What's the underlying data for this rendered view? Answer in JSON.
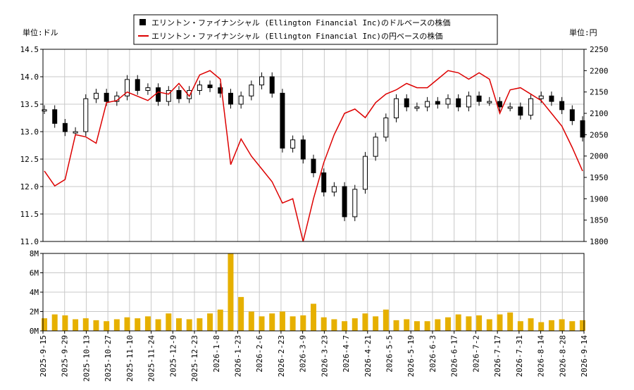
{
  "chart_data": {
    "type": "line",
    "legend_position": "top-center",
    "legend": [
      {
        "name": "エリントン・ファイナンシャル (Ellington Financial Inc)のドルベースの株価",
        "color": "#000000",
        "marker": "box"
      },
      {
        "name": "エリントン・ファイナンシャル (Ellington Financial Inc)の円ベースの株価",
        "color": "#dd0000",
        "marker": "line"
      }
    ],
    "y_left_unit": "単位:ドル",
    "y_right_unit": "単位:円",
    "y_left_range": [
      11.0,
      14.5
    ],
    "y_left_ticks": [
      "11.0",
      "11.5",
      "12.0",
      "12.5",
      "13.0",
      "13.5",
      "14.0",
      "14.5"
    ],
    "y_right_range": [
      1800,
      2250
    ],
    "y_right_ticks": [
      "1800",
      "1850",
      "1900",
      "1950",
      "2000",
      "2050",
      "2100",
      "2150",
      "2200",
      "2250"
    ],
    "volume_range": [
      0,
      8000000
    ],
    "volume_ticks": [
      "0M",
      "2M",
      "4M",
      "6M",
      "8M"
    ],
    "grid": true,
    "x_ticks": [
      "2025-9-15",
      "2025-9-29",
      "2025-10-13",
      "2025-10-27",
      "2025-11-10",
      "2025-11-24",
      "2025-12-9",
      "2025-12-23",
      "2026-1-8",
      "2026-1-23",
      "2026-2-6",
      "2026-2-23",
      "2026-3-9",
      "2026-3-23",
      "2026-4-7",
      "2026-4-21",
      "2026-5-5",
      "2026-5-19",
      "2026-6-3",
      "2026-6-17",
      "2026-7-2",
      "2026-7-17",
      "2026-7-31",
      "2026-8-14",
      "2026-8-28",
      "2026-9-14"
    ],
    "series": [
      {
        "name": "エリントン・ファイナンシャル (Ellington Financial Inc)のドルベースの株価",
        "values": [
          13.4,
          13.15,
          13.0,
          13.0,
          13.6,
          13.7,
          13.55,
          13.65,
          13.95,
          13.75,
          13.8,
          13.55,
          13.75,
          13.6,
          13.75,
          13.85,
          13.8,
          13.7,
          13.5,
          13.65,
          13.85,
          14.0,
          13.7,
          12.7,
          12.85,
          12.5,
          12.25,
          11.9,
          12.0,
          11.45,
          11.95,
          12.55,
          12.9,
          13.25,
          13.6,
          13.45,
          13.45,
          13.55,
          13.5,
          13.6,
          13.45,
          13.65,
          13.55,
          13.55,
          13.45,
          13.45,
          13.3,
          13.6,
          13.65,
          13.55,
          13.4,
          13.2,
          12.9
        ]
      },
      {
        "name": "エリントン・ファイナンシャル (Ellington Financial Inc)の円ベースの株価",
        "values": [
          1965,
          1930,
          1945,
          2050,
          2045,
          2030,
          2125,
          2130,
          2150,
          2140,
          2130,
          2150,
          2145,
          2170,
          2140,
          2190,
          2200,
          2180,
          1980,
          2040,
          2000,
          1970,
          1940,
          1890,
          1900,
          1800,
          1900,
          1985,
          2050,
          2100,
          2110,
          2090,
          2125,
          2145,
          2155,
          2170,
          2160,
          2160,
          2180,
          2200,
          2195,
          2180,
          2195,
          2180,
          2100,
          2155,
          2160,
          2145,
          2130,
          2100,
          2070,
          2020,
          1965
        ]
      },
      {
        "name": "volume",
        "values": [
          1300000,
          1700000,
          1600000,
          1200000,
          1300000,
          1100000,
          1000000,
          1200000,
          1400000,
          1300000,
          1500000,
          1200000,
          1800000,
          1300000,
          1200000,
          1300000,
          1800000,
          2200000,
          9000000,
          3500000,
          2000000,
          1500000,
          1800000,
          2000000,
          1500000,
          1600000,
          2800000,
          1400000,
          1200000,
          1000000,
          1300000,
          1800000,
          1500000,
          2200000,
          1100000,
          1200000,
          1000000,
          1000000,
          1200000,
          1400000,
          1700000,
          1500000,
          1600000,
          1200000,
          1700000,
          1900000,
          1000000,
          1300000,
          900000,
          1100000,
          1200000,
          1000000,
          1100000
        ]
      }
    ]
  }
}
